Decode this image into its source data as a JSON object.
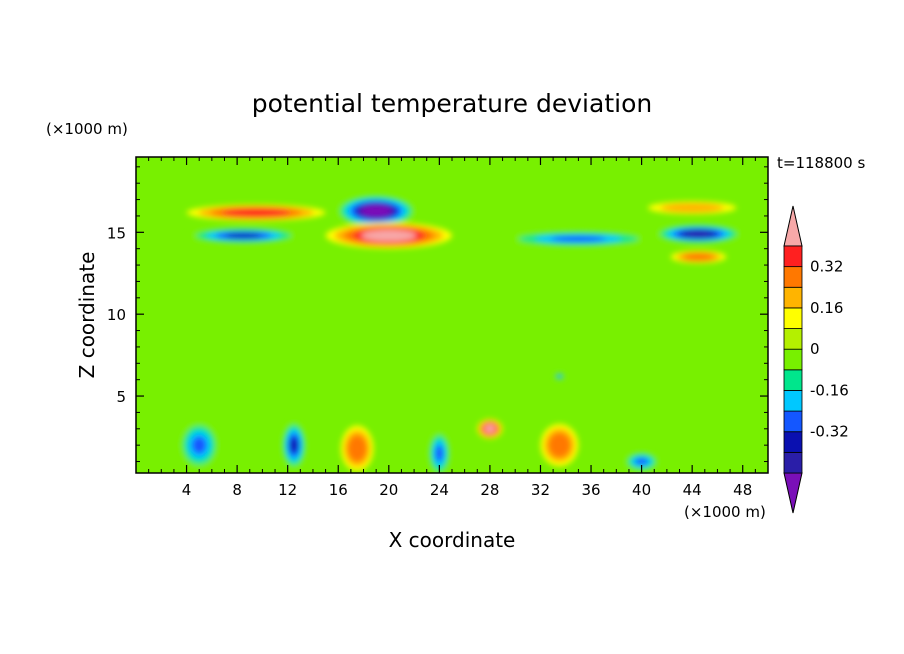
{
  "chart_data": {
    "type": "heatmap",
    "title": "potential temperature deviation",
    "xlabel": "X coordinate",
    "ylabel": "Z coordinate",
    "x_unit": "(×1000 m)",
    "y_unit": "(×1000 m)",
    "time_label": "t=118800 s",
    "xlim": [
      0,
      50
    ],
    "ylim": [
      0.3,
      19.6
    ],
    "x_ticks": [
      4,
      8,
      12,
      16,
      20,
      24,
      28,
      32,
      36,
      40,
      44,
      48
    ],
    "y_ticks": [
      5,
      10,
      15
    ],
    "colorbar": {
      "levels": [
        -0.48,
        -0.4,
        -0.32,
        -0.24,
        -0.16,
        -0.08,
        0,
        0.08,
        0.16,
        0.24,
        0.32,
        0.4
      ],
      "colors": [
        "#7a0fb8",
        "#2a1ea8",
        "#0a10b0",
        "#1457ff",
        "#00c8ff",
        "#00e68c",
        "#78f000",
        "#b4f000",
        "#ffff00",
        "#ffb400",
        "#ff7800",
        "#ff2020",
        "#f7a8a8"
      ],
      "tick_labels": [
        "0.32",
        "0.16",
        "0",
        "-0.16",
        "-0.32"
      ],
      "tick_values": [
        0.32,
        0.16,
        0,
        -0.16,
        -0.32
      ]
    },
    "features": [
      {
        "x": 19.0,
        "z": 16.3,
        "rx": 3.2,
        "rz": 1.0,
        "value": -0.5
      },
      {
        "x": 20.0,
        "z": 14.8,
        "rx": 5.0,
        "rz": 0.8,
        "value": 0.45
      },
      {
        "x": 9.5,
        "z": 16.2,
        "rx": 5.5,
        "rz": 0.5,
        "value": 0.35
      },
      {
        "x": 8.5,
        "z": 14.8,
        "rx": 4.5,
        "rz": 0.5,
        "value": -0.38
      },
      {
        "x": 35.0,
        "z": 14.6,
        "rx": 6.0,
        "rz": 0.5,
        "value": -0.28
      },
      {
        "x": 44.5,
        "z": 14.9,
        "rx": 3.5,
        "rz": 0.6,
        "value": -0.45
      },
      {
        "x": 44.0,
        "z": 16.5,
        "rx": 3.5,
        "rz": 0.4,
        "value": 0.2
      },
      {
        "x": 44.5,
        "z": 13.5,
        "rx": 2.2,
        "rz": 0.4,
        "value": 0.3
      },
      {
        "x": 33.5,
        "z": 2.0,
        "rx": 1.5,
        "rz": 1.3,
        "value": 0.3
      },
      {
        "x": 17.5,
        "z": 1.8,
        "rx": 1.3,
        "rz": 1.4,
        "value": 0.3
      },
      {
        "x": 28.0,
        "z": 3.0,
        "rx": 1.0,
        "rz": 0.6,
        "value": 0.42
      },
      {
        "x": 5.0,
        "z": 2.0,
        "rx": 1.6,
        "rz": 1.5,
        "value": -0.3
      },
      {
        "x": 12.5,
        "z": 2.0,
        "rx": 1.0,
        "rz": 1.5,
        "value": -0.35
      },
      {
        "x": 24.0,
        "z": 1.5,
        "rx": 0.9,
        "rz": 1.4,
        "value": -0.3
      },
      {
        "x": 40.0,
        "z": 1.0,
        "rx": 1.4,
        "rz": 0.6,
        "value": -0.3
      },
      {
        "x": 33.5,
        "z": 6.2,
        "rx": 0.4,
        "rz": 0.2,
        "value": -0.3
      }
    ]
  }
}
